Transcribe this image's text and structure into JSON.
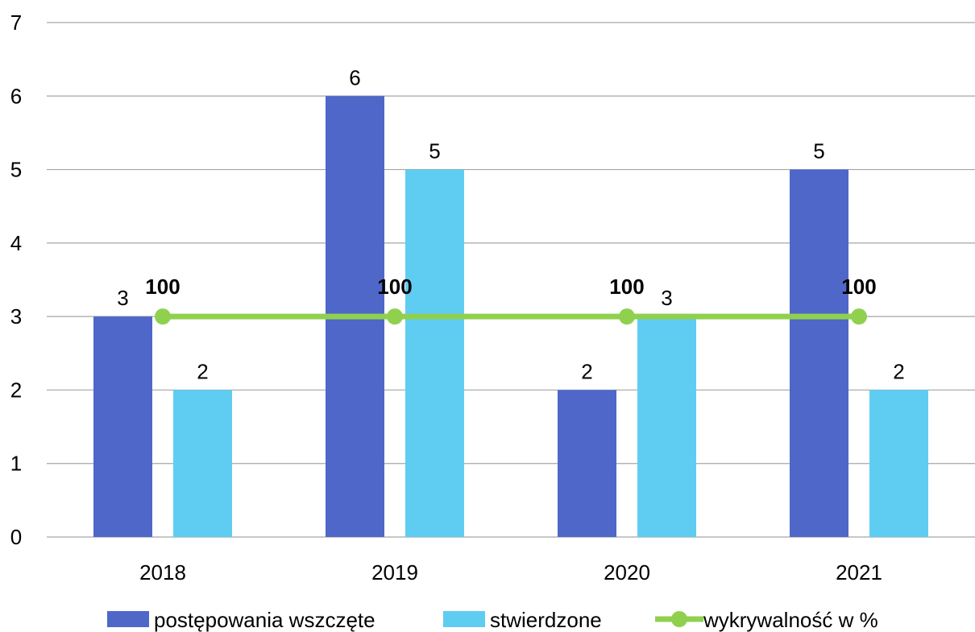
{
  "chart_data": {
    "type": "bar",
    "categories": [
      "2018",
      "2019",
      "2020",
      "2021"
    ],
    "series": [
      {
        "name": "postępowania wszczęte",
        "kind": "bar",
        "color": "#4f67c8",
        "values": [
          3,
          6,
          2,
          5
        ]
      },
      {
        "name": "stwierdzone",
        "kind": "bar",
        "color": "#5fcdf2",
        "values": [
          2,
          5,
          3,
          2
        ]
      },
      {
        "name": "wykrywalność w %",
        "kind": "line",
        "color": "#8fd14f",
        "values": [
          100,
          100,
          100,
          100
        ],
        "plotted_y": [
          3,
          3,
          3,
          3
        ]
      }
    ],
    "y_ticks": [
      "0",
      "1",
      "2",
      "3",
      "4",
      "5",
      "6",
      "7"
    ],
    "ylim": [
      0,
      7
    ],
    "grid": true,
    "legend_position": "bottom"
  }
}
